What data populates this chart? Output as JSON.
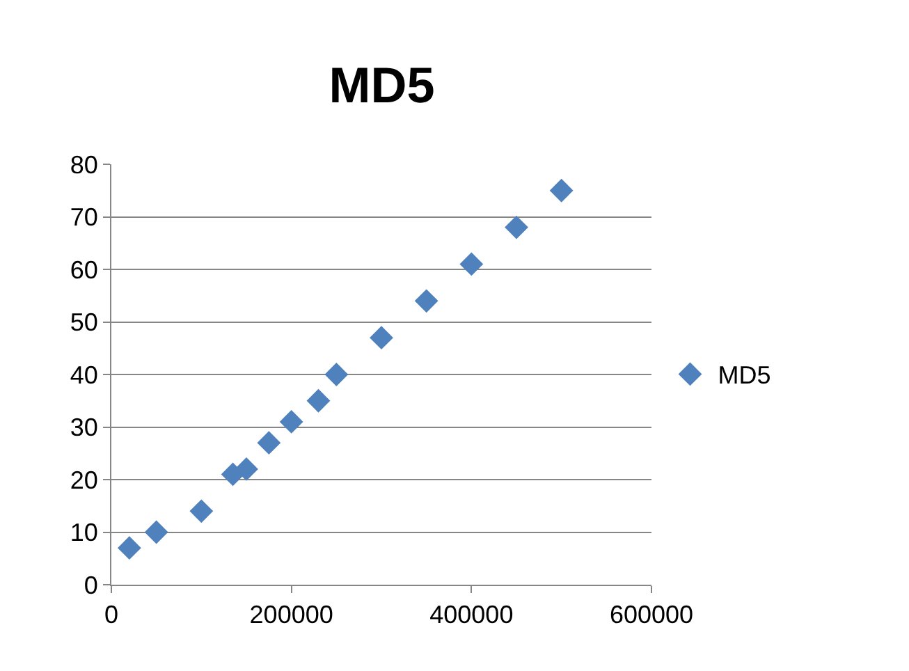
{
  "chart_data": {
    "type": "scatter",
    "title": "MD5",
    "x": [
      20000,
      50000,
      100000,
      135000,
      150000,
      175000,
      200000,
      230000,
      250000,
      300000,
      350000,
      400000,
      450000,
      500000
    ],
    "series": [
      {
        "name": "MD5",
        "color": "#4f81bd",
        "values": [
          7,
          10,
          14,
          21,
          22,
          27,
          31,
          35,
          40,
          47,
          54,
          61,
          68,
          75
        ]
      }
    ],
    "xlim": [
      0,
      600000
    ],
    "xticks": [
      0,
      200000,
      400000,
      600000
    ],
    "ylim": [
      0,
      80
    ],
    "yticks": [
      0,
      10,
      20,
      30,
      40,
      50,
      60,
      70,
      80
    ],
    "grid": "y",
    "legend": "right",
    "marker": "diamond"
  }
}
